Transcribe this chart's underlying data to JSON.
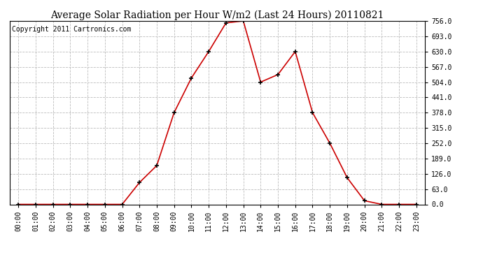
{
  "title": "Average Solar Radiation per Hour W/m2 (Last 24 Hours) 20110821",
  "copyright_text": "Copyright 2011 Cartronics.com",
  "hours": [
    "00:00",
    "01:00",
    "02:00",
    "03:00",
    "04:00",
    "05:00",
    "06:00",
    "07:00",
    "08:00",
    "09:00",
    "10:00",
    "11:00",
    "12:00",
    "13:00",
    "14:00",
    "15:00",
    "16:00",
    "17:00",
    "18:00",
    "19:00",
    "20:00",
    "21:00",
    "22:00",
    "23:00"
  ],
  "values": [
    0,
    0,
    0,
    0,
    0,
    0,
    0,
    90,
    160,
    378,
    521,
    630,
    748,
    756,
    504,
    535,
    630,
    378,
    252,
    110,
    15,
    0,
    0,
    0
  ],
  "line_color": "#cc0000",
  "marker": "+",
  "marker_color": "#000000",
  "marker_size": 5,
  "background_color": "#ffffff",
  "plot_bg_color": "#ffffff",
  "grid_color": "#bbbbbb",
  "grid_style": "--",
  "ylim": [
    0,
    756
  ],
  "yticks": [
    0,
    63,
    126,
    189,
    252,
    315,
    378,
    441,
    504,
    567,
    630,
    693,
    756
  ],
  "title_fontsize": 10,
  "copyright_fontsize": 7,
  "tick_fontsize": 7,
  "title_color": "#000000",
  "border_color": "#000000"
}
